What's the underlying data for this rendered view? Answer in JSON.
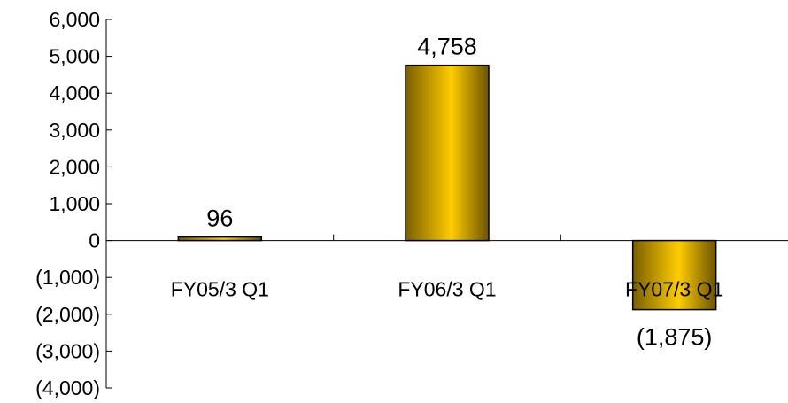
{
  "chart_data": {
    "type": "bar",
    "categories": [
      "FY05/3 Q1",
      "FY06/3 Q1",
      "FY07/3 Q1"
    ],
    "values": [
      96,
      4758,
      -1875
    ],
    "data_labels": [
      "96",
      "4,758",
      "(1,875)"
    ],
    "ylim": [
      -4000,
      6000
    ],
    "yticks": [
      6000,
      5000,
      4000,
      3000,
      2000,
      1000,
      0,
      -1000,
      -2000,
      -3000,
      -4000
    ],
    "ytick_labels": [
      "6,000",
      "5,000",
      "4,000",
      "3,000",
      "2,000",
      "1,000",
      "0",
      "(1,000)",
      "(2,000)",
      "(3,000)",
      "(4,000)"
    ],
    "title": "",
    "xlabel": "",
    "ylabel": "",
    "grid": false,
    "bar_color": "#f5c400",
    "bar_shadow_color": "#6b5300"
  }
}
